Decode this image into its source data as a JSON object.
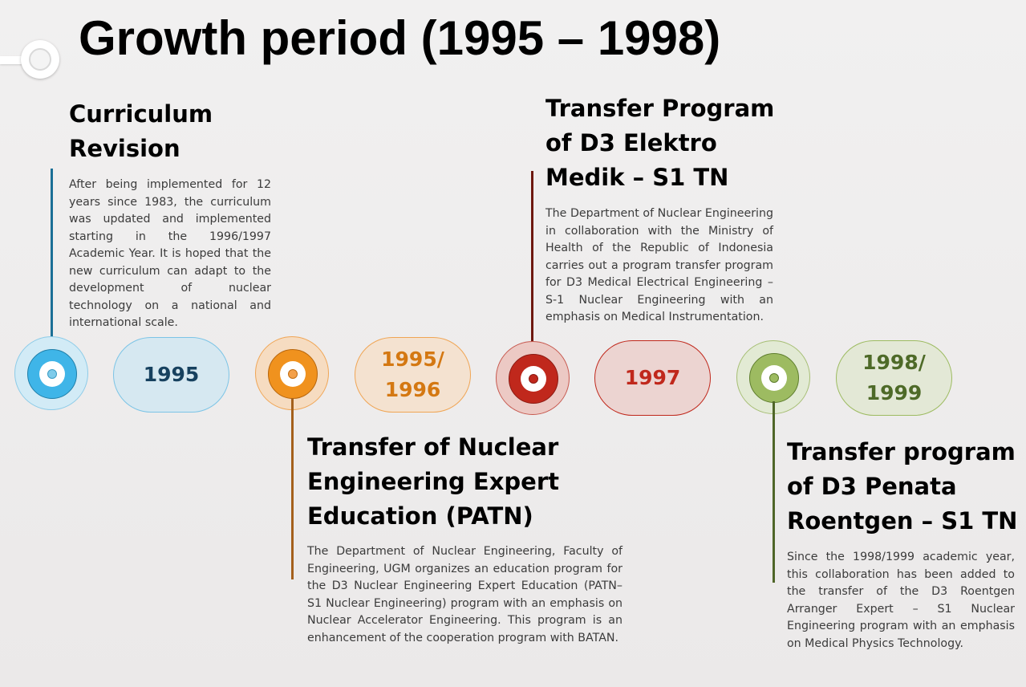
{
  "title": "Growth period (1995 – 1998)",
  "colors": {
    "blue": "#3fb5e8",
    "orange": "#f0921e",
    "red": "#c0281c",
    "green": "#9dbb61"
  },
  "events": [
    {
      "year_label": "1995",
      "heading_lines": [
        "Curriculum",
        "Revision"
      ],
      "description": "After being implemented for 12 years since 1983, the curriculum was updated and implemented starting in the 1996/1997 Academic Year. It is hoped that the new curriculum can adapt to the development of nuclear technology on a national and international scale."
    },
    {
      "year_label_lines": [
        "1995/",
        "1996"
      ],
      "heading_lines": [
        "Transfer of Nuclear",
        "Engineering Expert",
        "Education (PATN)"
      ],
      "description": "The Department of Nuclear Engineering, Faculty of Engineering, UGM organizes an education program for the D3 Nuclear Engineering Expert Education (PATN–S1 Nuclear Engineering) program with an emphasis on Nuclear Accelerator Engineering. This program is an enhancement of the cooperation program with BATAN."
    },
    {
      "year_label": "1997",
      "heading_lines": [
        "Transfer Program",
        "of D3 Elektro",
        "Medik – S1 TN"
      ],
      "description": "The Department of Nuclear Engineering in collaboration with the Ministry of Health of the Republic of Indonesia carries out a program transfer program for D3 Medical Electrical Engineering – S-1 Nuclear Engineering with an emphasis on Medical Instrumentation."
    },
    {
      "year_label_lines": [
        "1998/",
        "1999"
      ],
      "heading_lines": [
        "Transfer program",
        "of D3 Penata",
        "Roentgen  – S1 TN"
      ],
      "description": "Since the 1998/1999 academic year, this collaboration has been added to the transfer of the D3 Roentgen Arranger Expert – S1 Nuclear Engineering program with an emphasis on Medical Physics Technology."
    }
  ]
}
